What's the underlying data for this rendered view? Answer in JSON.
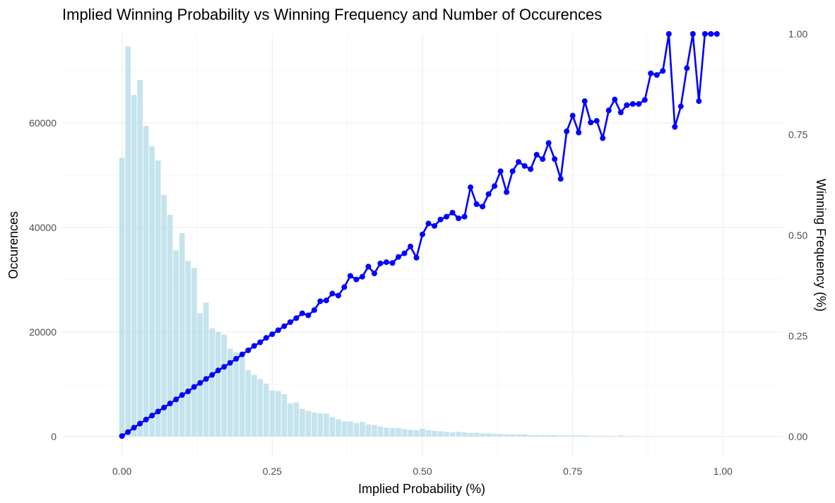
{
  "chart_data": {
    "type": "bar+line",
    "title": "Implied Winning Probability vs Winning Frequency and Number of Occurences",
    "xlabel": "Implied Probability (%)",
    "ylabel": "Occurences",
    "ylabel_right": "Winning Frequency (%)",
    "xlim": [
      -0.0995,
      1.0995
    ],
    "ylim_left": [
      -3800,
      77000
    ],
    "ylim_right": [
      -0.0494,
      1.0
    ],
    "x_ticks": [
      "0.00",
      "0.25",
      "0.50",
      "0.75",
      "1.00"
    ],
    "y_left_ticks": [
      "0",
      "20000",
      "40000",
      "60000"
    ],
    "y_right_ticks": [
      "0.00",
      "0.25",
      "0.50",
      "0.75",
      "1.00"
    ],
    "grid": true,
    "legend": "none",
    "bar_color": "#add8e6",
    "line_color": "#0000ff",
    "occurrences": {
      "x": [
        0.0,
        0.01,
        0.02,
        0.03,
        0.04,
        0.05,
        0.06,
        0.07,
        0.08,
        0.09,
        0.1,
        0.11,
        0.12,
        0.13,
        0.14,
        0.15,
        0.16,
        0.17,
        0.18,
        0.19,
        0.2,
        0.21,
        0.22,
        0.23,
        0.24,
        0.25,
        0.26,
        0.27,
        0.28,
        0.29,
        0.3,
        0.31,
        0.32,
        0.33,
        0.34,
        0.35,
        0.36,
        0.37,
        0.38,
        0.39,
        0.4,
        0.41,
        0.42,
        0.43,
        0.44,
        0.45,
        0.46,
        0.47,
        0.48,
        0.49,
        0.5,
        0.51,
        0.52,
        0.53,
        0.54,
        0.55,
        0.56,
        0.57,
        0.58,
        0.59,
        0.6,
        0.61,
        0.62,
        0.63,
        0.64,
        0.65,
        0.66,
        0.67,
        0.68,
        0.69,
        0.7,
        0.71,
        0.72,
        0.73,
        0.74,
        0.75,
        0.76,
        0.77,
        0.78,
        0.79,
        0.8,
        0.81,
        0.82,
        0.83,
        0.84,
        0.85,
        0.86,
        0.87,
        0.88,
        0.89,
        0.9,
        0.91,
        0.92,
        0.93,
        0.94,
        0.95,
        0.96,
        0.97,
        0.98,
        0.99
      ],
      "values": [
        53300,
        74600,
        65300,
        68200,
        59400,
        55500,
        52800,
        46200,
        42400,
        35600,
        38900,
        33600,
        32200,
        23600,
        25600,
        20700,
        20000,
        19500,
        16800,
        16100,
        15500,
        12700,
        11800,
        11000,
        10100,
        8800,
        8700,
        8100,
        6300,
        6500,
        5300,
        4900,
        4600,
        4400,
        4400,
        3700,
        3300,
        2900,
        2900,
        2600,
        2800,
        2300,
        2200,
        1900,
        1700,
        1600,
        1600,
        1400,
        1300,
        1200,
        1500,
        1200,
        1100,
        1000,
        900,
        800,
        900,
        800,
        700,
        700,
        600,
        600,
        500,
        500,
        400,
        400,
        400,
        400,
        300,
        300,
        300,
        300,
        300,
        200,
        200,
        200,
        200,
        200,
        150,
        150,
        150,
        100,
        100,
        200,
        80,
        80,
        80,
        60,
        60,
        60,
        50,
        50,
        40,
        40,
        30,
        30,
        30,
        30,
        20,
        20
      ]
    },
    "winning_frequency": {
      "x": [
        0.0,
        0.01,
        0.02,
        0.03,
        0.04,
        0.05,
        0.06,
        0.07,
        0.08,
        0.09,
        0.1,
        0.11,
        0.12,
        0.13,
        0.14,
        0.15,
        0.16,
        0.17,
        0.18,
        0.19,
        0.2,
        0.21,
        0.22,
        0.23,
        0.24,
        0.25,
        0.26,
        0.27,
        0.28,
        0.29,
        0.3,
        0.31,
        0.32,
        0.33,
        0.34,
        0.35,
        0.36,
        0.37,
        0.38,
        0.39,
        0.4,
        0.41,
        0.42,
        0.43,
        0.44,
        0.45,
        0.46,
        0.47,
        0.48,
        0.49,
        0.5,
        0.51,
        0.52,
        0.53,
        0.54,
        0.55,
        0.56,
        0.57,
        0.58,
        0.59,
        0.6,
        0.61,
        0.62,
        0.63,
        0.64,
        0.65,
        0.66,
        0.67,
        0.68,
        0.69,
        0.7,
        0.71,
        0.72,
        0.73,
        0.74,
        0.75,
        0.76,
        0.77,
        0.78,
        0.79,
        0.8,
        0.81,
        0.82,
        0.83,
        0.84,
        0.85,
        0.86,
        0.87,
        0.88,
        0.89,
        0.9,
        0.91,
        0.92,
        0.93,
        0.94,
        0.95,
        0.96,
        0.97,
        0.98,
        0.99
      ],
      "values": [
        0.001,
        0.011,
        0.022,
        0.032,
        0.042,
        0.052,
        0.062,
        0.072,
        0.082,
        0.092,
        0.103,
        0.112,
        0.123,
        0.133,
        0.143,
        0.153,
        0.164,
        0.173,
        0.183,
        0.193,
        0.204,
        0.214,
        0.225,
        0.234,
        0.245,
        0.254,
        0.264,
        0.274,
        0.284,
        0.294,
        0.306,
        0.301,
        0.314,
        0.336,
        0.338,
        0.355,
        0.35,
        0.371,
        0.399,
        0.39,
        0.397,
        0.422,
        0.405,
        0.43,
        0.433,
        0.431,
        0.446,
        0.455,
        0.472,
        0.444,
        0.502,
        0.529,
        0.523,
        0.539,
        0.546,
        0.556,
        0.542,
        0.546,
        0.619,
        0.577,
        0.571,
        0.602,
        0.622,
        0.659,
        0.607,
        0.659,
        0.682,
        0.672,
        0.664,
        0.7,
        0.689,
        0.729,
        0.689,
        0.64,
        0.758,
        0.797,
        0.755,
        0.833,
        0.78,
        0.784,
        0.741,
        0.81,
        0.837,
        0.805,
        0.823,
        0.826,
        0.826,
        0.836,
        0.902,
        0.898,
        0.908,
        1.0,
        0.769,
        0.82,
        0.915,
        1.0,
        0.833,
        1.0,
        1.0,
        1.0
      ]
    }
  }
}
